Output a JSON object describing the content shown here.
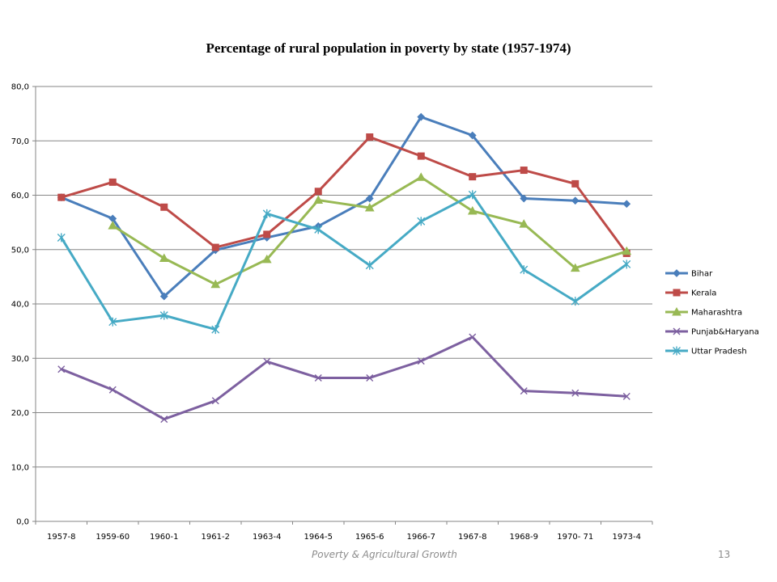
{
  "chart_data": {
    "type": "line",
    "title": "Percentage of rural population in poverty by state (1957-1974)",
    "xlabel": "",
    "ylabel": "",
    "ylim": [
      0,
      80
    ],
    "yticks": [
      "0,0",
      "10,0",
      "20,0",
      "30,0",
      "40,0",
      "50,0",
      "60,0",
      "70,0",
      "80,0"
    ],
    "grid": "horizontal",
    "legend_position": "right",
    "categories": [
      "1957-8",
      "1959-60",
      "1960-1",
      "1961-2",
      "1963-4",
      "1964-5",
      "1965-6",
      "1966-7",
      "1967-8",
      "1968-9",
      "1970- 71",
      "1973-4"
    ],
    "series": [
      {
        "name": "Bihar",
        "color": "#4a7ebb",
        "marker": "diamond",
        "values": [
          59.6,
          55.7,
          41.4,
          49.9,
          52.2,
          54.3,
          59.4,
          74.4,
          71.0,
          59.4,
          59.0,
          58.4
        ]
      },
      {
        "name": "Kerala",
        "color": "#be4b48",
        "marker": "square",
        "values": [
          59.6,
          62.4,
          57.8,
          50.4,
          52.8,
          60.7,
          70.7,
          67.2,
          63.4,
          64.6,
          62.1,
          49.3
        ]
      },
      {
        "name": "Maharashtra",
        "color": "#98b954",
        "marker": "triangle",
        "values": [
          null,
          54.4,
          48.4,
          43.6,
          48.2,
          59.1,
          57.7,
          63.3,
          57.1,
          54.7,
          46.6,
          49.7
        ]
      },
      {
        "name": "Punjab&Haryana",
        "color": "#7d60a0",
        "marker": "x",
        "values": [
          28.0,
          24.2,
          18.8,
          22.2,
          29.4,
          26.4,
          26.4,
          29.5,
          33.9,
          24.0,
          23.6,
          23.0
        ]
      },
      {
        "name": "Uttar Pradesh",
        "color": "#46aac5",
        "marker": "star",
        "values": [
          52.2,
          36.7,
          37.9,
          35.3,
          56.6,
          53.7,
          47.1,
          55.2,
          60.1,
          46.3,
          40.5,
          47.3
        ]
      }
    ]
  },
  "footer": {
    "text": "Poverty & Agricultural Growth",
    "page_number": "13"
  }
}
